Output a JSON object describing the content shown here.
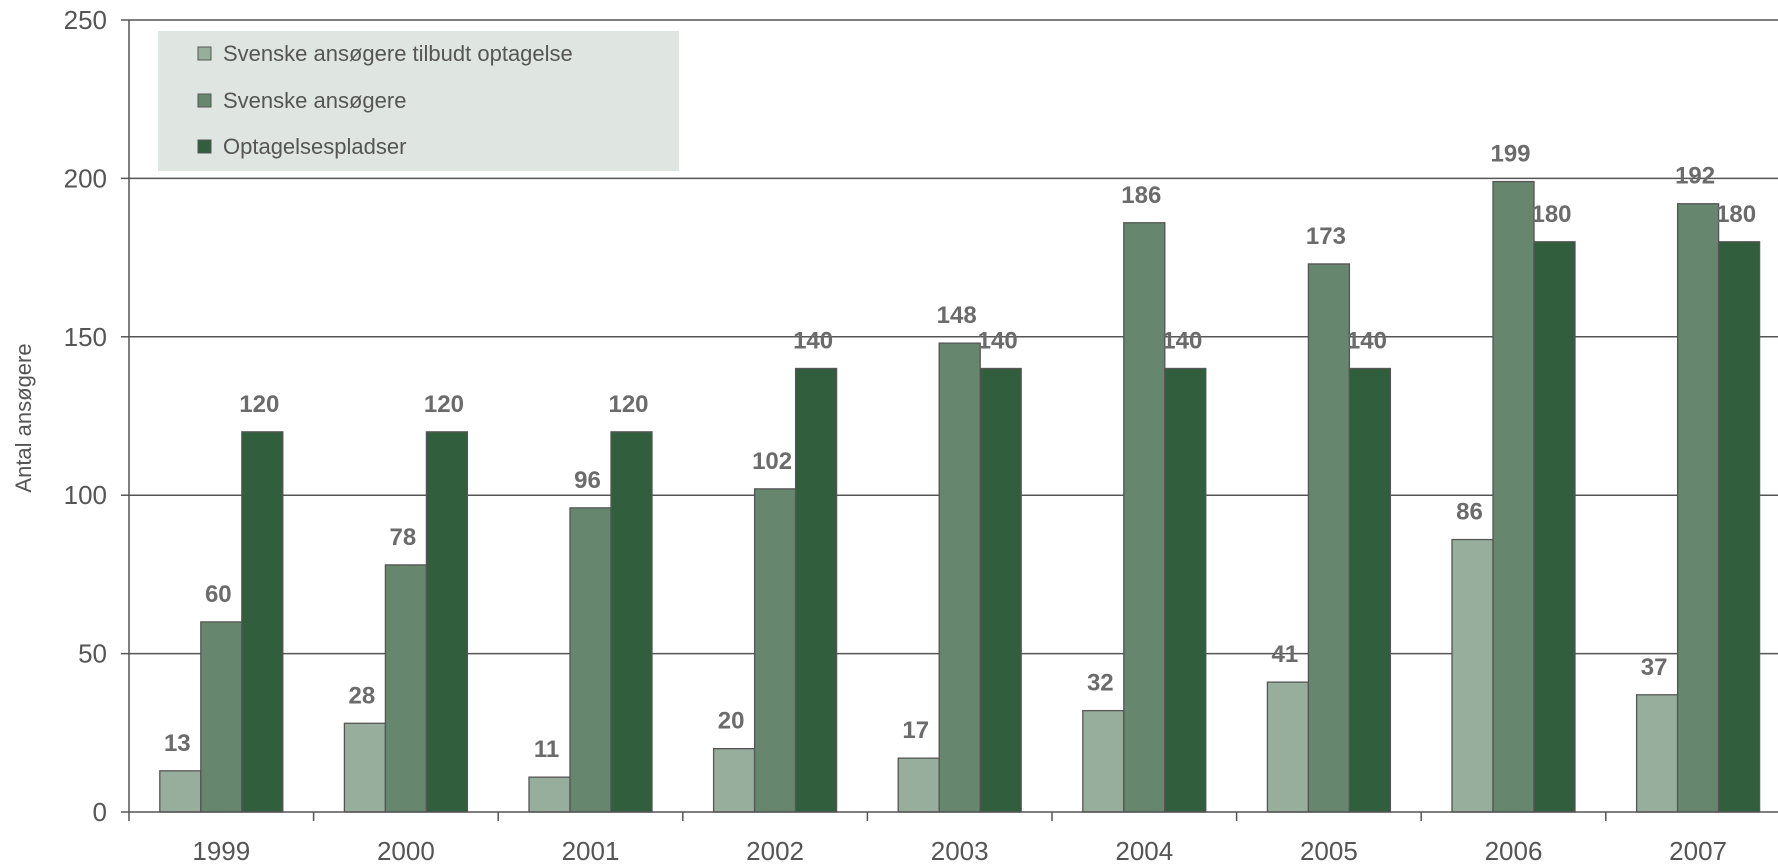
{
  "chart_data": {
    "type": "bar",
    "title": "",
    "xlabel": "",
    "ylabel": "Antal ansøgere",
    "ylim": [
      0,
      250
    ],
    "yticks": [
      0,
      50,
      100,
      150,
      200,
      250
    ],
    "grid": true,
    "legend_position": "top-left",
    "categories": [
      "1999",
      "2000",
      "2001",
      "2002",
      "2003",
      "2004",
      "2005",
      "2006",
      "2007"
    ],
    "series": [
      {
        "name": "Svenske ansøgere tilbudt optagelse",
        "color": "#98ae9c",
        "values": [
          13,
          28,
          11,
          20,
          17,
          32,
          41,
          86,
          37
        ]
      },
      {
        "name": "Svenske ansøgere",
        "color": "#66866d",
        "values": [
          60,
          78,
          96,
          102,
          148,
          186,
          173,
          199,
          192
        ]
      },
      {
        "name": "Optagelsespladser",
        "color": "#315e3c",
        "values": [
          120,
          120,
          120,
          140,
          140,
          140,
          140,
          180,
          180
        ]
      }
    ],
    "legend_background": "#dfe5e1",
    "gridline_color": "#555555"
  }
}
